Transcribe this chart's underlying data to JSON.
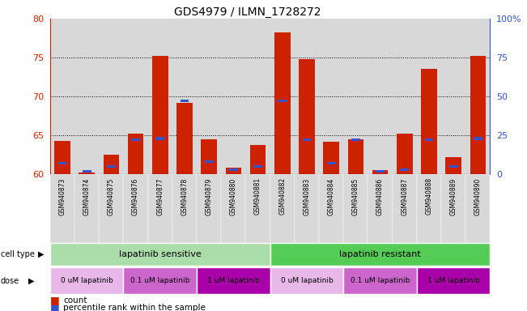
{
  "title": "GDS4979 / ILMN_1728272",
  "samples": [
    "GSM940873",
    "GSM940874",
    "GSM940875",
    "GSM940876",
    "GSM940877",
    "GSM940878",
    "GSM940879",
    "GSM940880",
    "GSM940881",
    "GSM940882",
    "GSM940883",
    "GSM940884",
    "GSM940885",
    "GSM940886",
    "GSM940887",
    "GSM940888",
    "GSM940889",
    "GSM940890"
  ],
  "count_values": [
    64.3,
    60.2,
    62.5,
    65.2,
    75.2,
    69.2,
    64.5,
    60.8,
    63.8,
    78.2,
    74.8,
    64.2,
    64.5,
    60.5,
    65.2,
    73.5,
    62.2,
    75.2
  ],
  "percentile_values": [
    7,
    2,
    5,
    22,
    23,
    47,
    8,
    3,
    5,
    47,
    22,
    7,
    22,
    2,
    3,
    22,
    5,
    23
  ],
  "ylim_left": [
    60,
    80
  ],
  "ylim_right": [
    0,
    100
  ],
  "yticks_left": [
    60,
    65,
    70,
    75,
    80
  ],
  "yticks_right": [
    0,
    25,
    50,
    75,
    100
  ],
  "ytick_labels_right": [
    "0",
    "25",
    "50",
    "75",
    "100%"
  ],
  "bar_color": "#cc2200",
  "blue_color": "#3355cc",
  "baseline": 60,
  "cell_type_sensitive_color": "#aaddaa",
  "cell_type_resistant_color": "#55cc55",
  "dose_colors": [
    "#e8b8e8",
    "#cc66cc",
    "#aa00aa"
  ],
  "dose_labels": [
    "0 uM lapatinib",
    "0.1 uM lapatinib",
    "1 uM lapatinib"
  ],
  "cell_type_labels": [
    "lapatinib sensitive",
    "lapatinib resistant"
  ],
  "n_sensitive": 9,
  "n_resistant": 9,
  "grid_yticks": [
    65,
    70,
    75
  ],
  "legend_count_label": "count",
  "legend_pct_label": "percentile rank within the sample",
  "col_bg_color": "#d8d8d8"
}
